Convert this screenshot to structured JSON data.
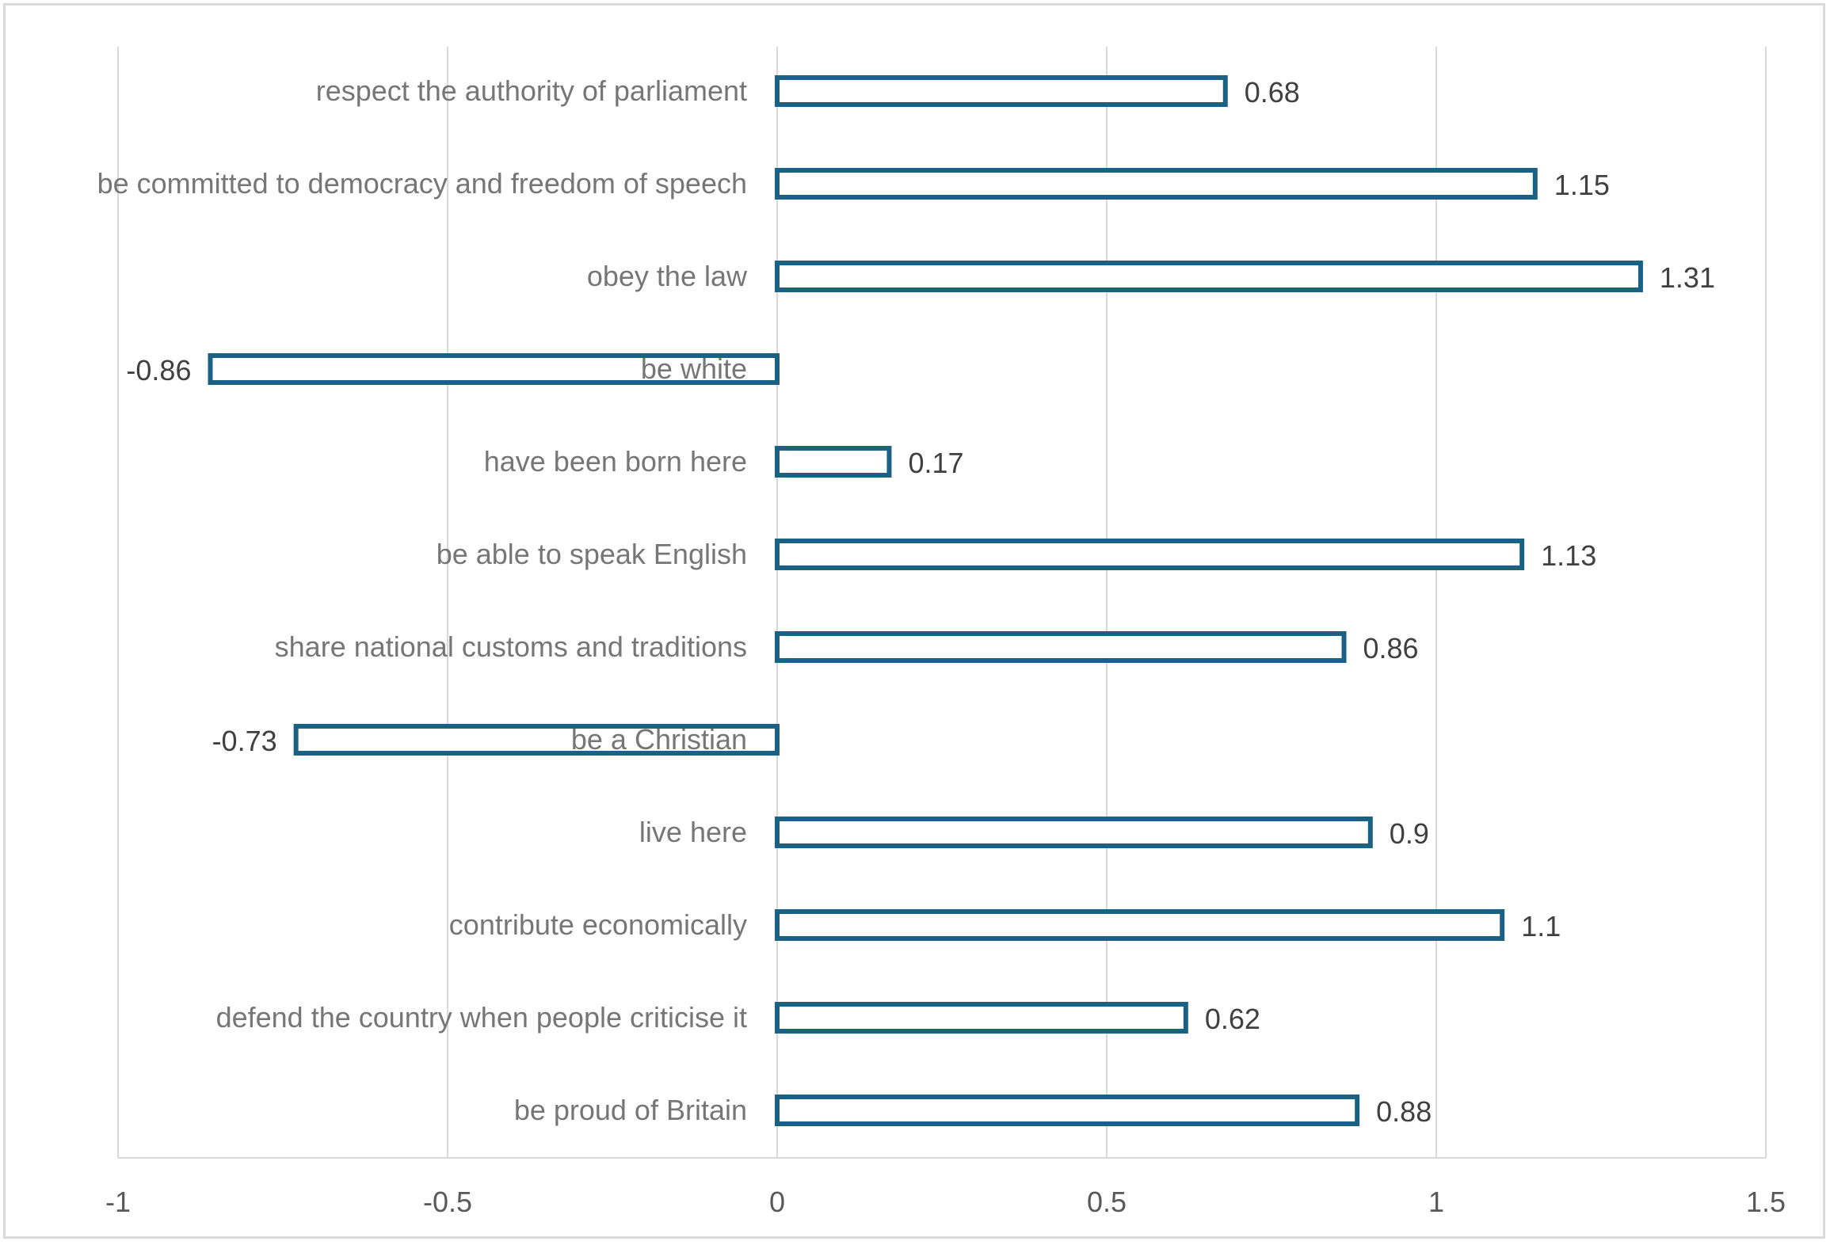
{
  "chart_data": {
    "type": "bar",
    "orientation": "horizontal",
    "categories": [
      "respect the authority of parliament",
      "be committed to democracy and freedom of speech",
      "obey the law",
      "be white",
      "have been born here",
      "be able to speak English",
      "share national customs and traditions",
      "be a Christian",
      "live here",
      "contribute economically",
      "defend the country when people criticise it",
      "be proud of Britain"
    ],
    "values": [
      0.68,
      1.15,
      1.31,
      -0.86,
      0.17,
      1.13,
      0.86,
      -0.73,
      0.9,
      1.1,
      0.62,
      0.88
    ],
    "data_labels": [
      "0.68",
      "1.15",
      "1.31",
      "-0.86",
      "0.17",
      "1.13",
      "0.86",
      "-0.73",
      "0.9",
      "1.1",
      "0.62",
      "0.88"
    ],
    "xlim": [
      -1,
      1.5
    ],
    "x_ticks": [
      -1,
      -0.5,
      0,
      0.5,
      1,
      1.5
    ],
    "x_tick_labels": [
      "-1",
      "-0.5",
      "0",
      "0.5",
      "1",
      "1.5"
    ],
    "title": "",
    "xlabel": "",
    "ylabel": "",
    "grid": true,
    "legend": "none",
    "bar_style": "outlined",
    "colors": {
      "bar_outline": "#1b6183",
      "bar_fill": "#ffffff",
      "gridline": "#d9d9d9",
      "category_text": "#767676",
      "data_label_text": "#404040",
      "tick_text": "#595959"
    }
  }
}
